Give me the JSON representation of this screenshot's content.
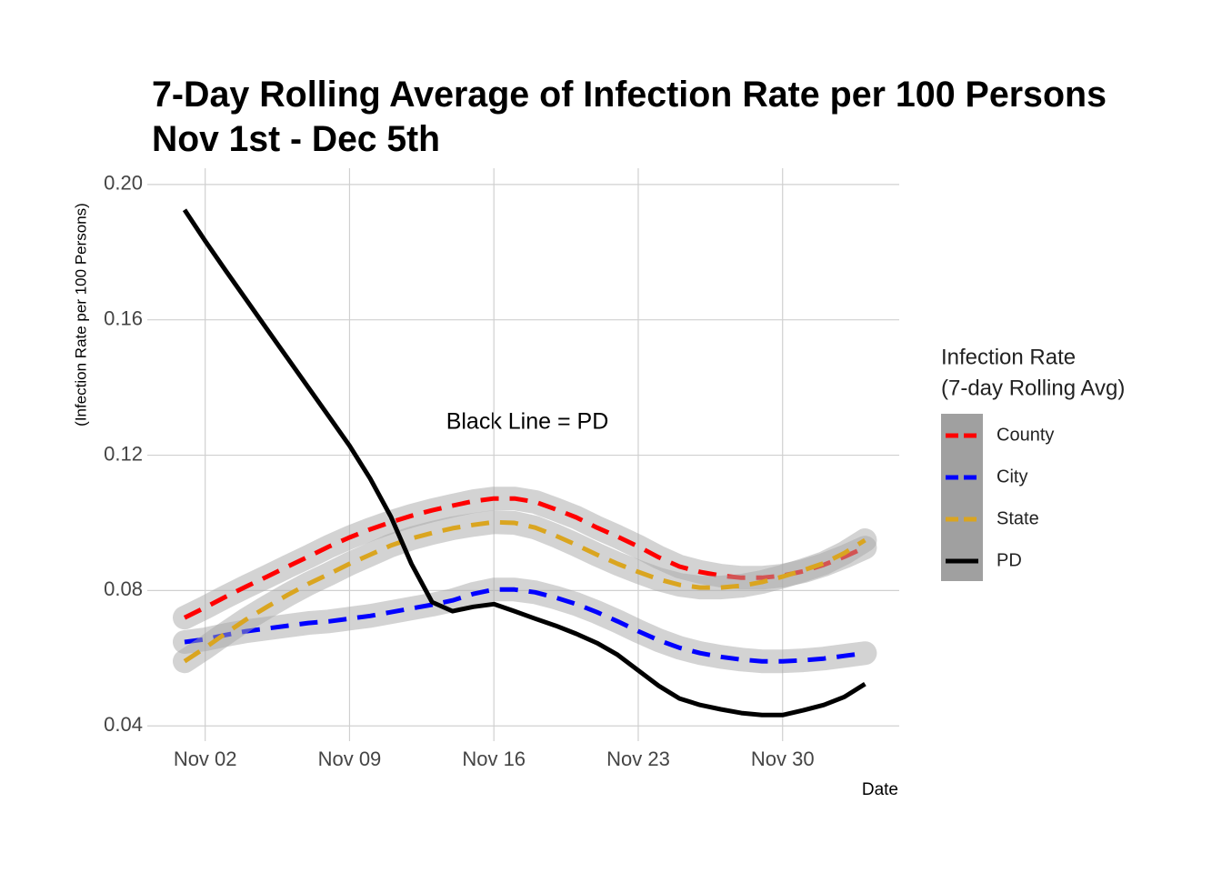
{
  "chart_data": {
    "type": "line",
    "title": [
      "7-Day Rolling Average of Infection Rate per 100 Persons",
      "Nov 1st - Dec 5th"
    ],
    "x_label": "Date",
    "y_label": "(Infection Rate per 100 Persons)",
    "annotations": [
      "Black Line = PD"
    ],
    "legend_title": [
      "Infection Rate",
      "(7-day Rolling Avg)"
    ],
    "legend_position": "right",
    "grid": true,
    "x": [
      "Nov 01",
      "Nov 02",
      "Nov 03",
      "Nov 04",
      "Nov 05",
      "Nov 06",
      "Nov 07",
      "Nov 08",
      "Nov 09",
      "Nov 10",
      "Nov 11",
      "Nov 12",
      "Nov 13",
      "Nov 14",
      "Nov 15",
      "Nov 16",
      "Nov 17",
      "Nov 18",
      "Nov 19",
      "Nov 20",
      "Nov 21",
      "Nov 22",
      "Nov 23",
      "Nov 24",
      "Nov 25",
      "Nov 26",
      "Nov 27",
      "Nov 28",
      "Nov 29",
      "Nov 30",
      "Dec 01",
      "Dec 02",
      "Dec 03",
      "Dec 04"
    ],
    "xticks": [
      "Nov 02",
      "Nov 09",
      "Nov 16",
      "Nov 23",
      "Nov 30"
    ],
    "ylim": [
      0.0355,
      0.2048
    ],
    "yticks": [
      {
        "value": 0.04,
        "label": "0.04"
      },
      {
        "value": 0.08,
        "label": "0.08"
      },
      0.12,
      0.16,
      {
        "value": 0.2,
        "label": "0.20"
      }
    ],
    "series": [
      {
        "name": "County",
        "color": "#ff0000",
        "dashed": true,
        "values": [
          0.072,
          0.075,
          0.0782,
          0.0812,
          0.0841,
          0.0871,
          0.09,
          0.093,
          0.0957,
          0.0981,
          0.1002,
          0.1021,
          0.1037,
          0.1051,
          0.1064,
          0.1072,
          0.1072,
          0.1062,
          0.104,
          0.1016,
          0.0986,
          0.0959,
          0.093,
          0.0898,
          0.0871,
          0.0855,
          0.0844,
          0.0838,
          0.0838,
          0.0844,
          0.0857,
          0.0876,
          0.09,
          0.0927
        ]
      },
      {
        "name": "City",
        "color": "#0000ff",
        "dashed": true,
        "values": [
          0.0648,
          0.0656,
          0.0669,
          0.068,
          0.0688,
          0.0696,
          0.0704,
          0.0709,
          0.0717,
          0.0725,
          0.0736,
          0.0747,
          0.0758,
          0.0771,
          0.079,
          0.0803,
          0.0803,
          0.0795,
          0.0779,
          0.076,
          0.0736,
          0.0709,
          0.068,
          0.0653,
          0.0631,
          0.0615,
          0.0604,
          0.0596,
          0.0591,
          0.0591,
          0.0594,
          0.0599,
          0.0607,
          0.0615
        ]
      },
      {
        "name": "State",
        "color": "#daa520",
        "dashed": true,
        "values": [
          0.0591,
          0.0631,
          0.0674,
          0.0715,
          0.0752,
          0.0787,
          0.082,
          0.0849,
          0.0879,
          0.0906,
          0.0933,
          0.0954,
          0.097,
          0.0984,
          0.0994,
          0.1002,
          0.1,
          0.0986,
          0.0962,
          0.0935,
          0.0906,
          0.0879,
          0.0855,
          0.0833,
          0.0817,
          0.0809,
          0.0809,
          0.0814,
          0.0825,
          0.0841,
          0.086,
          0.0881,
          0.0911,
          0.0949
        ]
      },
      {
        "name": "PD",
        "color": "#000000",
        "dashed": false,
        "values": [
          0.1925,
          0.1833,
          0.1745,
          0.1659,
          0.1572,
          0.1486,
          0.14,
          0.1314,
          0.1228,
          0.1131,
          0.1019,
          0.0879,
          0.0766,
          0.0739,
          0.0752,
          0.076,
          0.0739,
          0.0717,
          0.0696,
          0.0672,
          0.0645,
          0.061,
          0.0564,
          0.0518,
          0.0481,
          0.0462,
          0.0449,
          0.0438,
          0.0432,
          0.0432,
          0.0446,
          0.0462,
          0.0486,
          0.0524
        ]
      }
    ]
  }
}
